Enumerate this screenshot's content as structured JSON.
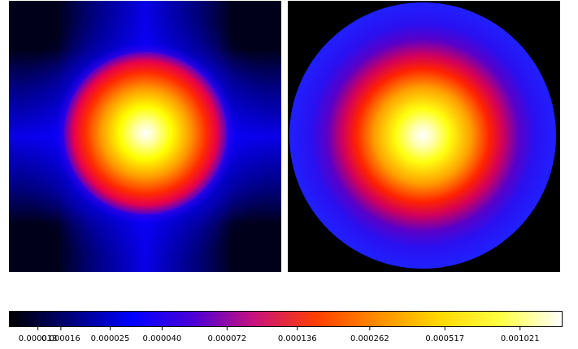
{
  "chart_data": [
    {
      "type": "heatmap",
      "title": "",
      "description_of_field": "radially peaked intensity with cross-shaped (plus) diffraction streaks, black corners",
      "colormap": "gnuplot2",
      "grid": false
    },
    {
      "type": "heatmap",
      "title": "",
      "description_of_field": "radially peaked intensity inside a circular aperture, black outside the circle",
      "colormap": "gnuplot2",
      "grid": false
    }
  ],
  "colorbar": {
    "scale": "log",
    "colormap": "gnuplot2",
    "range": [
      1e-05,
      0.0015
    ],
    "tick_labels": [
      "0.000013",
      "0.000016",
      "0.000025",
      "0.000040",
      "0.000072",
      "0.000136",
      "0.000262",
      "0.000517",
      "0.001021"
    ],
    "tick_values": [
      1.3e-05,
      1.6e-05,
      2.5e-05,
      4e-05,
      7.2e-05,
      0.000136,
      0.000262,
      0.000517,
      0.001021
    ],
    "stops": [
      "#000000",
      "#00007a",
      "#0000ff",
      "#4b00d8",
      "#c9137b",
      "#ff3f00",
      "#ff8c00",
      "#ffd800",
      "#ffff44",
      "#ffffff"
    ]
  }
}
